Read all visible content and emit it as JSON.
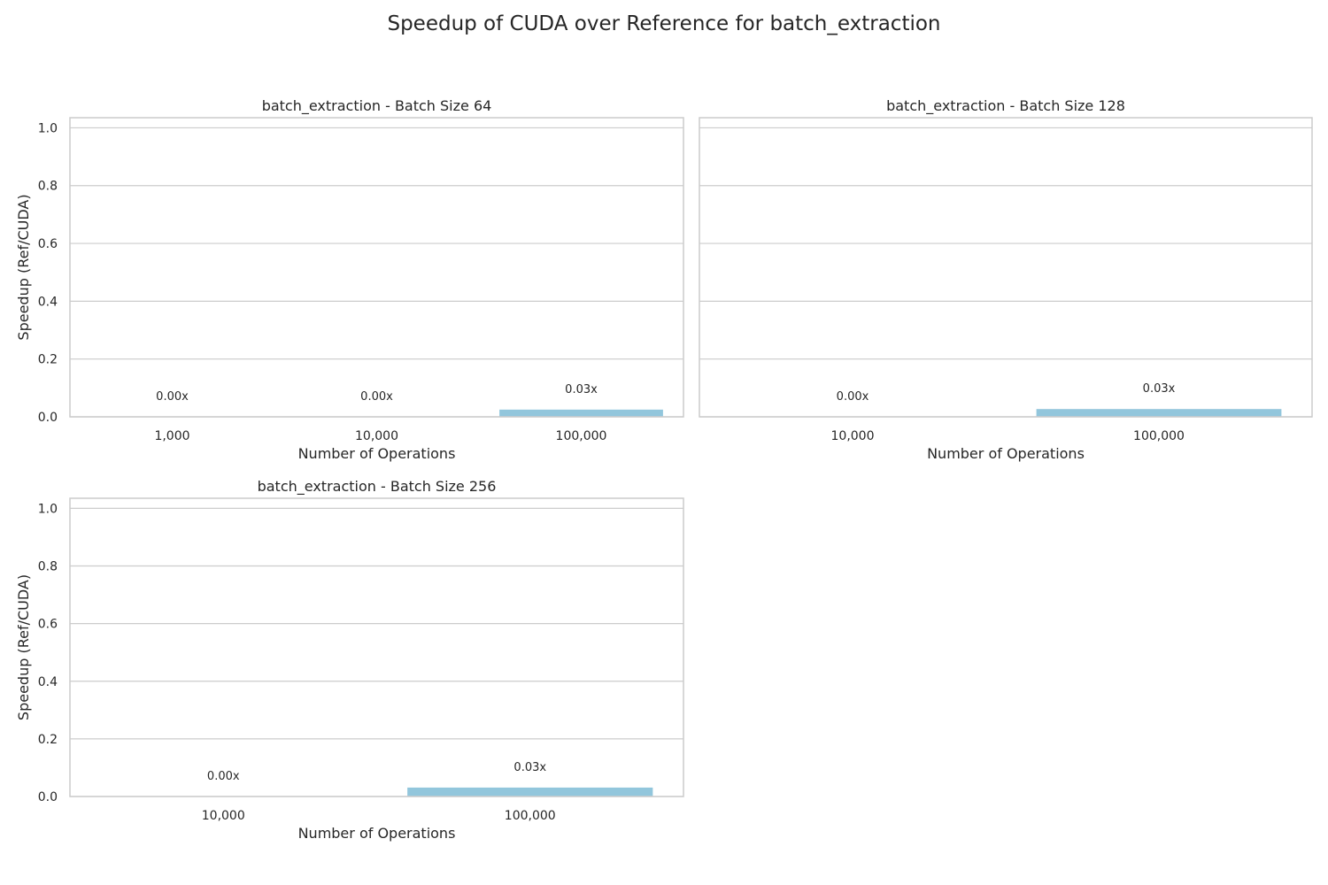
{
  "figure": {
    "title": "Speedup of CUDA over Reference for batch_extraction",
    "bar_color": "#92c6dc"
  },
  "chart_data": [
    {
      "type": "bar",
      "title": "batch_extraction - Batch Size 64",
      "xlabel": "Number of Operations",
      "ylabel": "Speedup (Ref/CUDA)",
      "categories": [
        "1,000",
        "10,000",
        "100,000"
      ],
      "values": [
        0.0,
        0.0,
        0.025
      ],
      "data_labels": [
        "0.00x",
        "0.00x",
        "0.03x"
      ],
      "ylim": [
        0,
        1.035
      ],
      "yticks": [
        0.0,
        0.2,
        0.4,
        0.6,
        0.8,
        1.0
      ],
      "ytick_labels": [
        "0.0",
        "0.2",
        "0.4",
        "0.6",
        "0.8",
        "1.0"
      ],
      "grid": true,
      "legend": "none"
    },
    {
      "type": "bar",
      "title": "batch_extraction - Batch Size 128",
      "xlabel": "Number of Operations",
      "ylabel": "",
      "categories": [
        "10,000",
        "100,000"
      ],
      "values": [
        0.0,
        0.027
      ],
      "data_labels": [
        "0.00x",
        "0.03x"
      ],
      "ylim": [
        0,
        1.035
      ],
      "yticks": [
        0.0,
        0.2,
        0.4,
        0.6,
        0.8,
        1.0
      ],
      "ytick_labels": [],
      "grid": true,
      "legend": "none"
    },
    {
      "type": "bar",
      "title": "batch_extraction - Batch Size 256",
      "xlabel": "Number of Operations",
      "ylabel": "Speedup (Ref/CUDA)",
      "categories": [
        "10,000",
        "100,000"
      ],
      "values": [
        0.0,
        0.031
      ],
      "data_labels": [
        "0.00x",
        "0.03x"
      ],
      "ylim": [
        0,
        1.035
      ],
      "yticks": [
        0.0,
        0.2,
        0.4,
        0.6,
        0.8,
        1.0
      ],
      "ytick_labels": [
        "0.0",
        "0.2",
        "0.4",
        "0.6",
        "0.8",
        "1.0"
      ],
      "grid": true,
      "legend": "none"
    }
  ]
}
